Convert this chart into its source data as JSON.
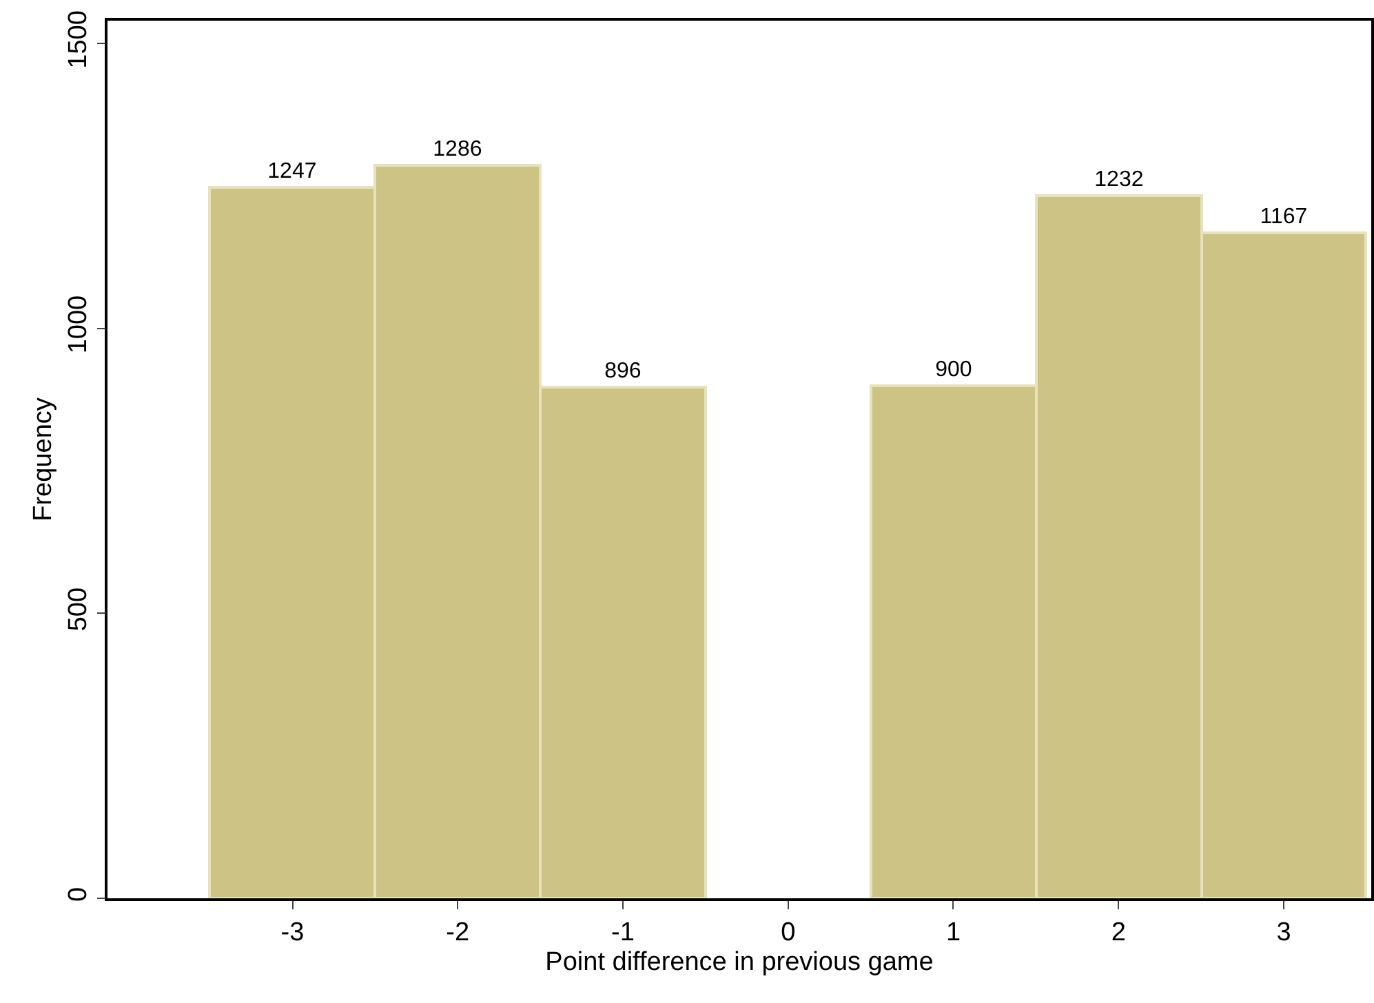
{
  "chart_data": {
    "type": "histogram",
    "xlabel": "Point difference in previous game",
    "ylabel": "Frequency",
    "bins": [
      -3.5,
      -2.5,
      -1.5,
      -0.5,
      0.5,
      1.5,
      2.5,
      3.5
    ],
    "values": [
      1247,
      1286,
      896,
      0,
      900,
      1232,
      1167
    ],
    "value_labels": [
      "1247",
      "1286",
      "896",
      null,
      "900",
      "1232",
      "1167"
    ],
    "color": "#ccc385",
    "xlim": [
      -4.12,
      3.53
    ],
    "xticks": [
      -3,
      -2,
      -1,
      0,
      1,
      2,
      3
    ],
    "ylim": [
      0,
      1540
    ],
    "yticks": [
      0,
      500,
      1000,
      1500
    ],
    "grid": false
  }
}
